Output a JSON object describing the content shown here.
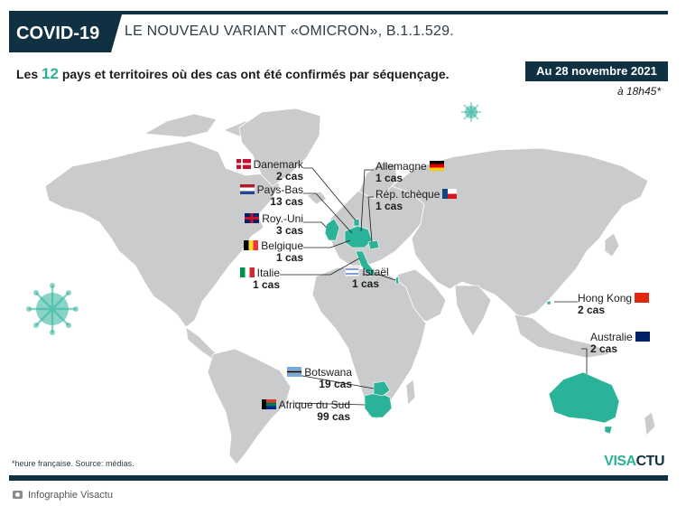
{
  "header": {
    "tag": "COVID-19",
    "headline": "LE NOUVEAU VARIANT «OMICRON», B.1.1.529.",
    "subtitle_prefix": "Les ",
    "subtitle_count": "12",
    "subtitle_suffix": " pays et territoires où des cas ont été confirmés par séquençage.",
    "date": "Au 28 novembre 2021",
    "time": "à 18h45*"
  },
  "colors": {
    "dark": "#0f3142",
    "accent": "#2bb39a",
    "land": "#c9cbcc",
    "highlight": "#2bb39a"
  },
  "countries": {
    "danemark": {
      "name": "Danemark",
      "cases": "2 cas"
    },
    "pays_bas": {
      "name": "Pays-Bas",
      "cases": "13 cas"
    },
    "roy_uni": {
      "name": "Roy.-Uni",
      "cases": "3 cas"
    },
    "belgique": {
      "name": "Belgique",
      "cases": "1 cas"
    },
    "italie": {
      "name": "Italie",
      "cases": "1 cas"
    },
    "allemagne": {
      "name": "Allemagne",
      "cases": "1 cas"
    },
    "rep_tcheque": {
      "name": "Rép. tchèque",
      "cases": "1 cas"
    },
    "israel": {
      "name": "Israël",
      "cases": "1 cas"
    },
    "hong_kong": {
      "name": "Hong Kong",
      "cases": "2 cas"
    },
    "australie": {
      "name": "Australie",
      "cases": "2 cas"
    },
    "botswana": {
      "name": "Botswana",
      "cases": "19 cas"
    },
    "afrique_du_sud": {
      "name": "Afrique du Sud",
      "cases": "99 cas"
    }
  },
  "footer": {
    "source": "*heure française. Source: médias.",
    "brand_a": "VISA",
    "brand_b": "CTU"
  },
  "caption": "Infographie Visactu",
  "icons": [
    "virus-icon",
    "flag-icon",
    "camera-icon",
    "brand-logo"
  ]
}
